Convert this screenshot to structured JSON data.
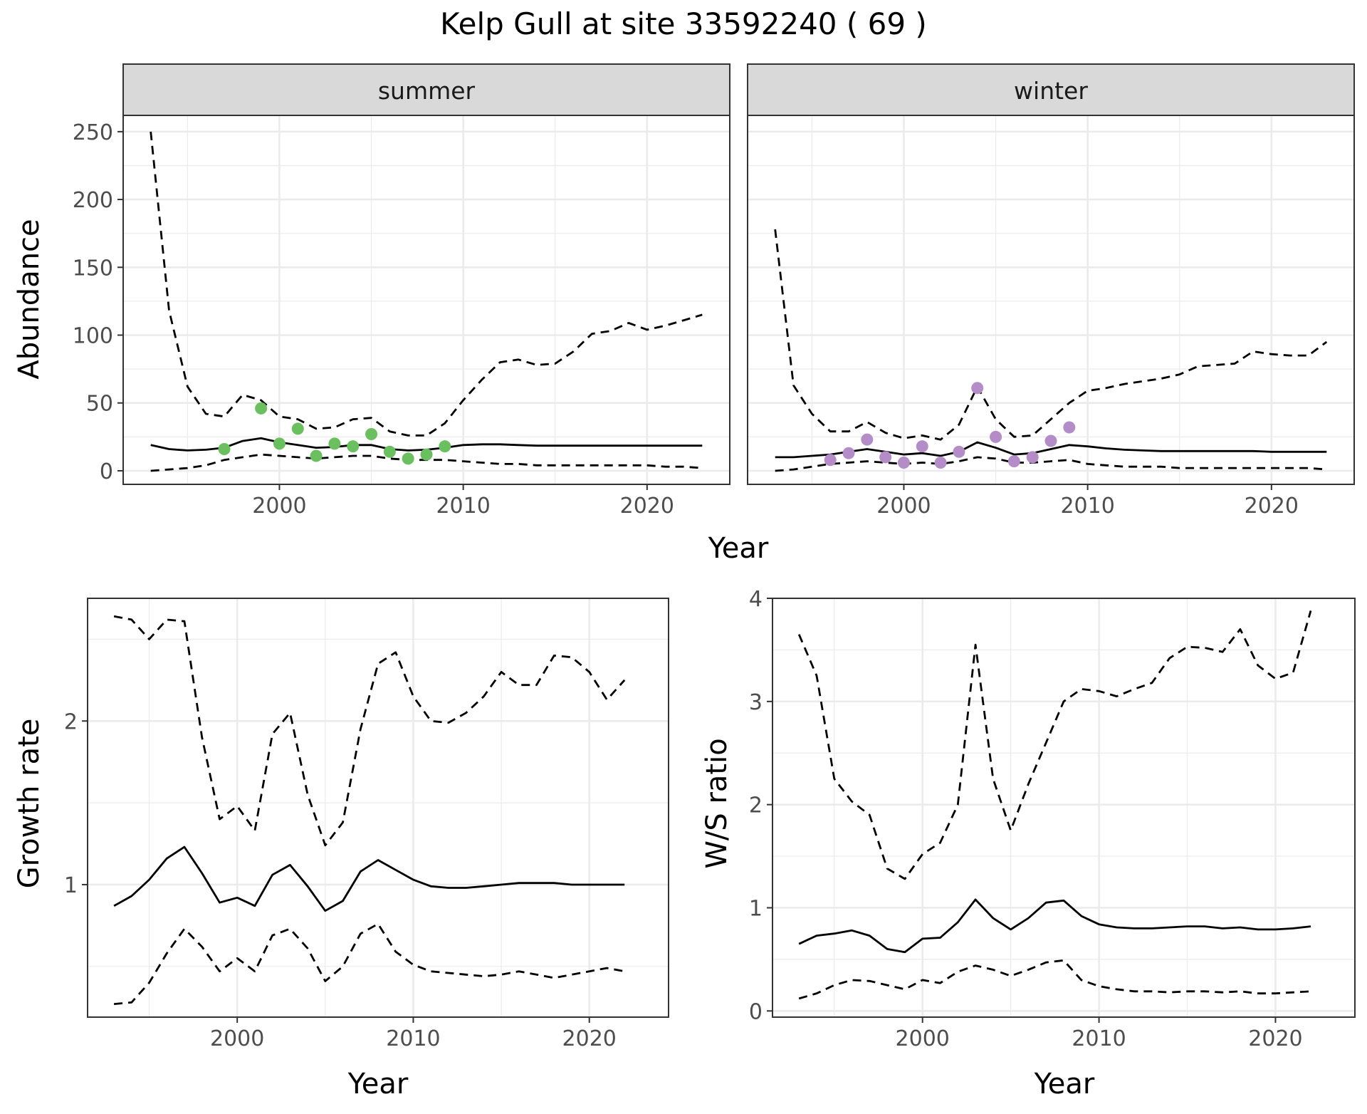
{
  "title": "Kelp Gull at site 33592240 ( 69 )",
  "colors": {
    "summer_points": "#6abf5e",
    "winter_points": "#b48cc8",
    "lines": "#000000",
    "strip_fill": "#d9d9d9",
    "grid": "#ebebeb",
    "panel_border": "#333333"
  },
  "chart_data": [
    {
      "type": "line",
      "facet": "summer",
      "xlabel": "Year",
      "ylabel": "Abundance",
      "xlim": [
        1991.5,
        2024.5
      ],
      "ylim": [
        -10,
        262
      ],
      "xticks": [
        2000,
        2010,
        2020
      ],
      "yticks": [
        0,
        50,
        100,
        150,
        200,
        250
      ],
      "grid": true,
      "series": [
        {
          "role": "estimate",
          "style": "solid",
          "x": [
            1993,
            1994,
            1995,
            1996,
            1997,
            1998,
            1999,
            2000,
            2001,
            2002,
            2003,
            2004,
            2005,
            2006,
            2007,
            2008,
            2009,
            2010,
            2011,
            2012,
            2013,
            2014,
            2015,
            2016,
            2017,
            2018,
            2019,
            2020,
            2021,
            2022,
            2023
          ],
          "y": [
            19,
            16,
            15,
            15.5,
            17,
            22,
            24,
            21,
            19,
            17,
            17.5,
            19,
            19,
            16,
            15,
            15.5,
            17,
            19,
            19.5,
            19.5,
            19,
            18.5,
            18.5,
            18.5,
            18.5,
            18.5,
            18.5,
            18.5,
            18.5,
            18.5,
            18.5
          ]
        },
        {
          "role": "upper",
          "style": "dashed",
          "x": [
            1993,
            1994,
            1995,
            1996,
            1997,
            1998,
            1999,
            2000,
            2001,
            2002,
            2003,
            2004,
            2005,
            2006,
            2007,
            2008,
            2009,
            2010,
            2011,
            2012,
            2013,
            2014,
            2015,
            2016,
            2017,
            2018,
            2019,
            2020,
            2021,
            2022,
            2023
          ],
          "y": [
            250,
            118,
            62,
            42,
            40,
            56,
            52,
            40,
            38,
            31,
            32,
            38,
            39,
            29,
            26,
            26,
            35,
            52,
            67,
            80,
            82,
            78,
            79,
            88,
            101,
            103,
            109,
            104,
            107,
            111,
            115
          ]
        },
        {
          "role": "lower",
          "style": "dashed",
          "x": [
            1993,
            1994,
            1995,
            1996,
            1997,
            1998,
            1999,
            2000,
            2001,
            2002,
            2003,
            2004,
            2005,
            2006,
            2007,
            2008,
            2009,
            2010,
            2011,
            2012,
            2013,
            2014,
            2015,
            2016,
            2017,
            2018,
            2019,
            2020,
            2021,
            2022,
            2023
          ],
          "y": [
            0,
            1,
            2,
            4,
            8,
            10,
            12,
            11,
            10,
            9,
            10,
            11,
            11,
            9,
            8,
            8,
            8,
            7,
            6,
            5,
            5,
            4,
            4,
            4,
            4,
            4,
            4,
            4,
            3,
            3,
            2
          ]
        },
        {
          "role": "observed",
          "style": "points",
          "x": [
            1997,
            1999,
            2000,
            2001,
            2002,
            2003,
            2004,
            2005,
            2006,
            2007,
            2008,
            2009
          ],
          "y": [
            16,
            46,
            20,
            31,
            11,
            20,
            18,
            27,
            14,
            9,
            12,
            18
          ]
        }
      ]
    },
    {
      "type": "line",
      "facet": "winter",
      "xlabel": "Year",
      "ylabel": "Abundance",
      "xlim": [
        1991.5,
        2024.5
      ],
      "ylim": [
        -10,
        262
      ],
      "xticks": [
        2000,
        2010,
        2020
      ],
      "yticks": [
        0,
        50,
        100,
        150,
        200,
        250
      ],
      "grid": true,
      "series": [
        {
          "role": "estimate",
          "style": "solid",
          "x": [
            1993,
            1994,
            1995,
            1996,
            1997,
            1998,
            1999,
            2000,
            2001,
            2002,
            2003,
            2004,
            2005,
            2006,
            2007,
            2008,
            2009,
            2010,
            2011,
            2012,
            2013,
            2014,
            2015,
            2016,
            2017,
            2018,
            2019,
            2020,
            2021,
            2022,
            2023
          ],
          "y": [
            10,
            10,
            11,
            12,
            14,
            16,
            14,
            12,
            13,
            11,
            14,
            21,
            17,
            12,
            13,
            16,
            19,
            18,
            16.5,
            15.5,
            15,
            14.5,
            14.5,
            14.5,
            14.5,
            14.5,
            14.5,
            14,
            14,
            14,
            14
          ]
        },
        {
          "role": "upper",
          "style": "dashed",
          "x": [
            1993,
            1994,
            1995,
            1996,
            1997,
            1998,
            1999,
            2000,
            2001,
            2002,
            2003,
            2004,
            2005,
            2006,
            2007,
            2008,
            2009,
            2010,
            2011,
            2012,
            2013,
            2014,
            2015,
            2016,
            2017,
            2018,
            2019,
            2020,
            2021,
            2022,
            2023
          ],
          "y": [
            178,
            63,
            42,
            29,
            29,
            36,
            28,
            24,
            26,
            23,
            34,
            62,
            38,
            25,
            26,
            38,
            50,
            59,
            61,
            64,
            66,
            68,
            71,
            77,
            78,
            79,
            88,
            86,
            85,
            85,
            95
          ]
        },
        {
          "role": "lower",
          "style": "dashed",
          "x": [
            1993,
            1994,
            1995,
            1996,
            1997,
            1998,
            1999,
            2000,
            2001,
            2002,
            2003,
            2004,
            2005,
            2006,
            2007,
            2008,
            2009,
            2010,
            2011,
            2012,
            2013,
            2014,
            2015,
            2016,
            2017,
            2018,
            2019,
            2020,
            2021,
            2022,
            2023
          ],
          "y": [
            0,
            1,
            3,
            5,
            6,
            7,
            6,
            5,
            6,
            5,
            7,
            10,
            9,
            6,
            6,
            7,
            8,
            5,
            4,
            3,
            3,
            3,
            2,
            2,
            2,
            2,
            2,
            2,
            2,
            2,
            1
          ]
        },
        {
          "role": "observed",
          "style": "points",
          "x": [
            1996,
            1997,
            1998,
            1999,
            2000,
            2001,
            2002,
            2003,
            2004,
            2005,
            2006,
            2007,
            2008,
            2009
          ],
          "y": [
            8,
            13,
            23,
            10,
            6,
            18,
            6,
            14,
            61,
            25,
            7,
            10,
            22,
            32
          ]
        }
      ]
    },
    {
      "type": "line",
      "xlabel": "Year",
      "ylabel": "Growth rate",
      "xlim": [
        1991.5,
        2024.5
      ],
      "ylim": [
        0.19,
        2.75
      ],
      "xticks": [
        2000,
        2010,
        2020
      ],
      "yticks": [
        1,
        2
      ],
      "grid": true,
      "series": [
        {
          "role": "estimate",
          "style": "solid",
          "x": [
            1993,
            1994,
            1995,
            1996,
            1997,
            1998,
            1999,
            2000,
            2001,
            2002,
            2003,
            2004,
            2005,
            2006,
            2007,
            2008,
            2009,
            2010,
            2011,
            2012,
            2013,
            2014,
            2015,
            2016,
            2017,
            2018,
            2019,
            2020,
            2021,
            2022
          ],
          "y": [
            0.87,
            0.93,
            1.03,
            1.16,
            1.23,
            1.07,
            0.89,
            0.92,
            0.87,
            1.06,
            1.12,
            0.99,
            0.84,
            0.9,
            1.08,
            1.15,
            1.09,
            1.03,
            0.99,
            0.98,
            0.98,
            0.99,
            1.0,
            1.01,
            1.01,
            1.01,
            1.0,
            1.0,
            1.0,
            1.0
          ]
        },
        {
          "role": "upper",
          "style": "dashed",
          "x": [
            1993,
            1994,
            1995,
            1996,
            1997,
            1998,
            1999,
            2000,
            2001,
            2002,
            2003,
            2004,
            2005,
            2006,
            2007,
            2008,
            2009,
            2010,
            2011,
            2012,
            2013,
            2014,
            2015,
            2016,
            2017,
            2018,
            2019,
            2020,
            2021,
            2022
          ],
          "y": [
            2.64,
            2.62,
            2.5,
            2.62,
            2.61,
            1.9,
            1.4,
            1.48,
            1.33,
            1.92,
            2.05,
            1.55,
            1.24,
            1.38,
            1.95,
            2.35,
            2.42,
            2.15,
            2.0,
            1.99,
            2.05,
            2.15,
            2.3,
            2.22,
            2.22,
            2.4,
            2.39,
            2.3,
            2.13,
            2.25
          ]
        },
        {
          "role": "lower",
          "style": "dashed",
          "x": [
            1993,
            1994,
            1995,
            1996,
            1997,
            1998,
            1999,
            2000,
            2001,
            2002,
            2003,
            2004,
            2005,
            2006,
            2007,
            2008,
            2009,
            2010,
            2011,
            2012,
            2013,
            2014,
            2015,
            2016,
            2017,
            2018,
            2019,
            2020,
            2021,
            2022
          ],
          "y": [
            0.27,
            0.28,
            0.4,
            0.58,
            0.73,
            0.62,
            0.47,
            0.55,
            0.47,
            0.69,
            0.73,
            0.61,
            0.41,
            0.5,
            0.7,
            0.76,
            0.59,
            0.51,
            0.47,
            0.46,
            0.45,
            0.44,
            0.45,
            0.47,
            0.45,
            0.43,
            0.45,
            0.47,
            0.49,
            0.47
          ]
        }
      ]
    },
    {
      "type": "line",
      "xlabel": "Year",
      "ylabel": "W/S ratio",
      "xlim": [
        1991.5,
        2024.5
      ],
      "ylim": [
        -0.06,
        4.0
      ],
      "xticks": [
        2000,
        2010,
        2020
      ],
      "yticks": [
        0,
        1,
        2,
        3,
        4
      ],
      "grid": true,
      "series": [
        {
          "role": "estimate",
          "style": "solid",
          "x": [
            1993,
            1994,
            1995,
            1996,
            1997,
            1998,
            1999,
            2000,
            2001,
            2002,
            2003,
            2004,
            2005,
            2006,
            2007,
            2008,
            2009,
            2010,
            2011,
            2012,
            2013,
            2014,
            2015,
            2016,
            2017,
            2018,
            2019,
            2020,
            2021,
            2022
          ],
          "y": [
            0.65,
            0.73,
            0.75,
            0.78,
            0.73,
            0.6,
            0.57,
            0.7,
            0.71,
            0.86,
            1.08,
            0.9,
            0.79,
            0.9,
            1.05,
            1.07,
            0.92,
            0.84,
            0.81,
            0.8,
            0.8,
            0.81,
            0.82,
            0.82,
            0.8,
            0.81,
            0.79,
            0.79,
            0.8,
            0.82
          ]
        },
        {
          "role": "upper",
          "style": "dashed",
          "x": [
            1993,
            1994,
            1995,
            1996,
            1997,
            1998,
            1999,
            2000,
            2001,
            2002,
            2003,
            2004,
            2005,
            2006,
            2007,
            2008,
            2009,
            2010,
            2011,
            2012,
            2013,
            2014,
            2015,
            2016,
            2017,
            2018,
            2019,
            2020,
            2021,
            2022
          ],
          "y": [
            3.65,
            3.25,
            2.25,
            2.03,
            1.9,
            1.38,
            1.28,
            1.52,
            1.63,
            2.0,
            3.55,
            2.25,
            1.75,
            2.2,
            2.6,
            3.0,
            3.12,
            3.1,
            3.05,
            3.12,
            3.18,
            3.42,
            3.53,
            3.52,
            3.48,
            3.7,
            3.35,
            3.22,
            3.28,
            3.88
          ]
        },
        {
          "role": "lower",
          "style": "dashed",
          "x": [
            1993,
            1994,
            1995,
            1996,
            1997,
            1998,
            1999,
            2000,
            2001,
            2002,
            2003,
            2004,
            2005,
            2006,
            2007,
            2008,
            2009,
            2010,
            2011,
            2012,
            2013,
            2014,
            2015,
            2016,
            2017,
            2018,
            2019,
            2020,
            2021,
            2022
          ],
          "y": [
            0.12,
            0.17,
            0.25,
            0.3,
            0.29,
            0.25,
            0.21,
            0.3,
            0.27,
            0.38,
            0.44,
            0.4,
            0.34,
            0.4,
            0.47,
            0.49,
            0.3,
            0.24,
            0.21,
            0.19,
            0.19,
            0.18,
            0.19,
            0.19,
            0.18,
            0.19,
            0.17,
            0.17,
            0.18,
            0.19
          ]
        }
      ]
    }
  ]
}
